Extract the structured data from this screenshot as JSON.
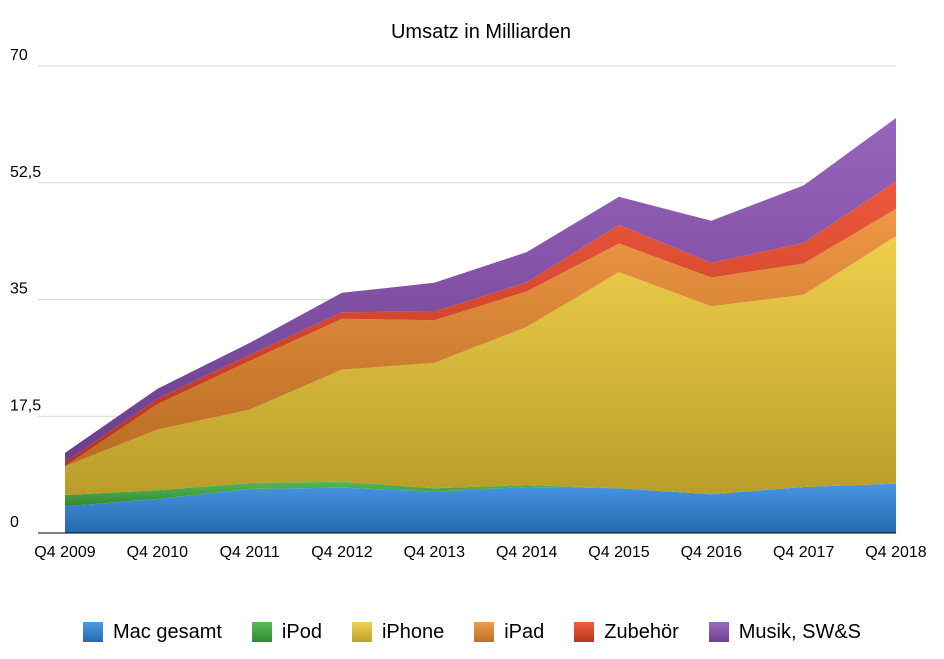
{
  "chart_data": {
    "type": "area",
    "stacked": true,
    "title": "Umsatz in Milliarden",
    "xlabel": "",
    "ylabel": "",
    "categories": [
      "Q4 2009",
      "Q4 2010",
      "Q4 2011",
      "Q4 2012",
      "Q4 2013",
      "Q4 2014",
      "Q4 2015",
      "Q4 2016",
      "Q4 2017",
      "Q4 2018"
    ],
    "y_ticks": [
      0,
      17.5,
      35,
      52.5,
      70
    ],
    "y_tick_labels": [
      "0",
      "17,5",
      "35",
      "52,5",
      "70"
    ],
    "ylim": [
      0,
      70
    ],
    "grid": true,
    "legend_position": "bottom",
    "series": [
      {
        "name": "Mac gesamt",
        "color": "#2F86DE",
        "values": [
          4.0,
          5.1,
          6.6,
          6.8,
          6.2,
          6.9,
          6.7,
          5.8,
          6.9,
          7.4
        ]
      },
      {
        "name": "iPod",
        "color": "#3FAE3F",
        "values": [
          1.7,
          1.3,
          0.9,
          0.9,
          0.5,
          0.3,
          0.0,
          0.0,
          0.0,
          0.0
        ]
      },
      {
        "name": "iPhone",
        "color": "#EDC934",
        "values": [
          4.3,
          9.1,
          11.0,
          16.8,
          18.8,
          23.7,
          32.4,
          28.2,
          28.8,
          37.1
        ]
      },
      {
        "name": "iPad",
        "color": "#ED8A2C",
        "values": [
          0.0,
          3.8,
          7.3,
          7.6,
          6.4,
          5.3,
          4.3,
          4.3,
          4.7,
          4.1
        ]
      },
      {
        "name": "Zubehör",
        "color": "#EA4222",
        "values": [
          0.6,
          0.8,
          0.9,
          1.0,
          1.3,
          1.4,
          2.8,
          2.2,
          3.1,
          4.1
        ]
      },
      {
        "name": "Musik, SW&S",
        "color": "#8A4FB4",
        "values": [
          1.4,
          1.5,
          1.8,
          2.9,
          4.3,
          4.5,
          4.2,
          6.3,
          8.6,
          9.5
        ]
      }
    ]
  }
}
